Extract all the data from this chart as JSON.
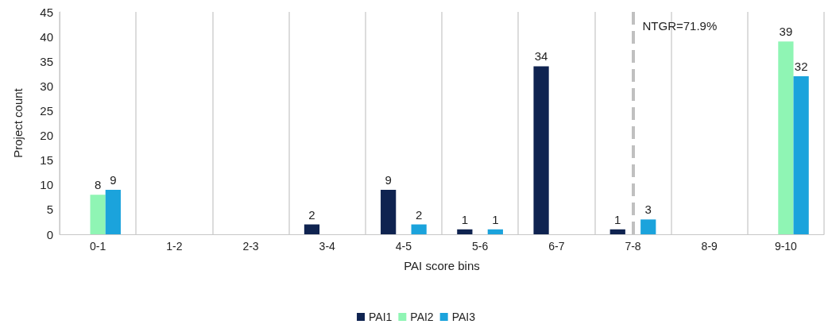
{
  "chart_data": {
    "type": "bar",
    "xlabel": "PAI score bins",
    "ylabel": "Project count",
    "categories": [
      "0-1",
      "1-2",
      "2-3",
      "3-4",
      "4-5",
      "5-6",
      "6-7",
      "7-8",
      "8-9",
      "9-10"
    ],
    "series": [
      {
        "name": "PAI1",
        "color": "#0f2350",
        "values": [
          null,
          null,
          null,
          2,
          9,
          1,
          34,
          1,
          null,
          null
        ]
      },
      {
        "name": "PAI2",
        "color": "#8ff5b4",
        "values": [
          8,
          null,
          null,
          null,
          null,
          null,
          null,
          null,
          null,
          39
        ]
      },
      {
        "name": "PAI3",
        "color": "#1ba3dc",
        "values": [
          9,
          null,
          null,
          null,
          2,
          1,
          null,
          3,
          null,
          32
        ]
      }
    ],
    "ylim": [
      0,
      45
    ],
    "yticks": [
      0,
      5,
      10,
      15,
      20,
      25,
      30,
      35,
      40,
      45
    ],
    "ref_lines": [
      {
        "axis": "x",
        "value": "7-8",
        "label": "NTGR=71.9%",
        "color": "#c0c0c0",
        "line_style": "dashed"
      }
    ],
    "grid": "x",
    "legend": "bottom",
    "data_labels": true
  }
}
